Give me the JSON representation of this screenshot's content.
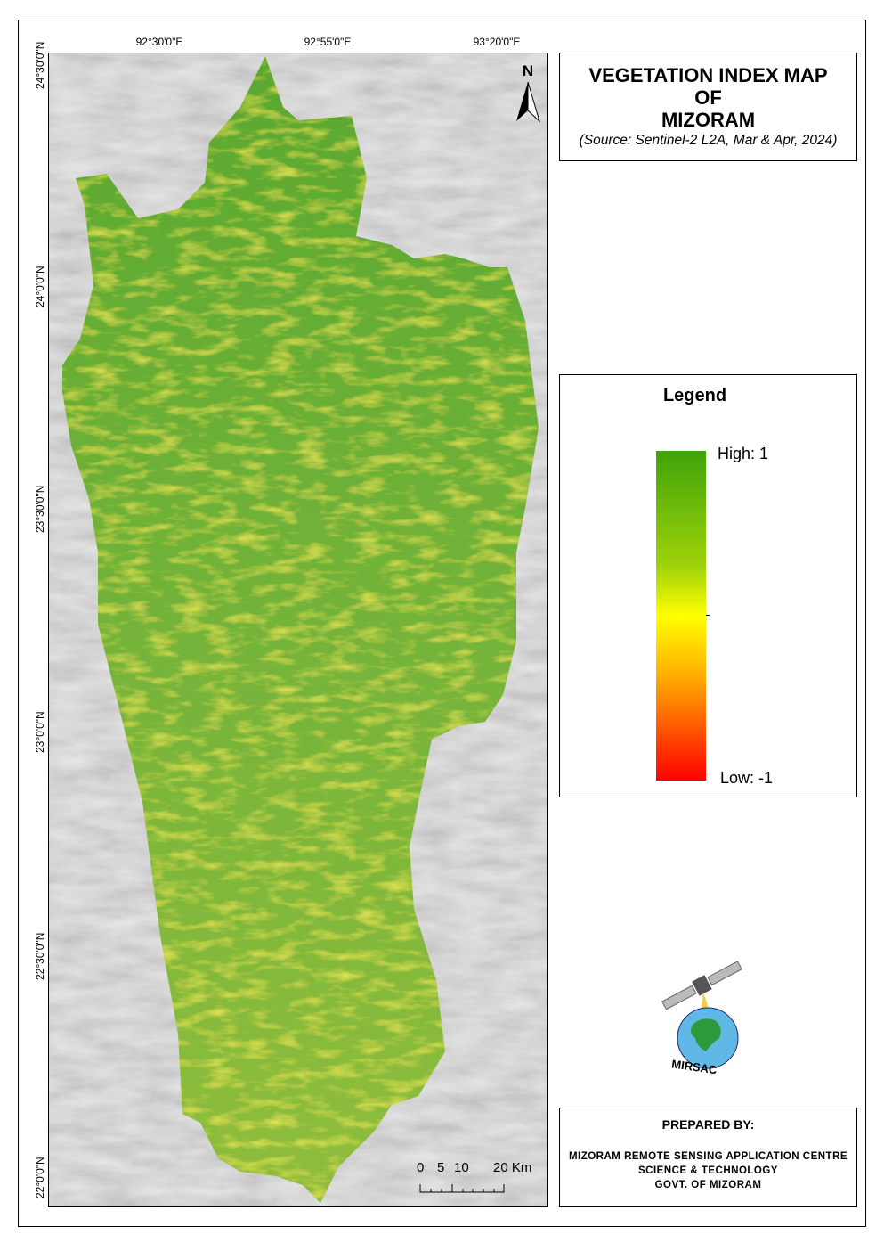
{
  "title": {
    "line1": "VEGETATION INDEX MAP",
    "line2": "OF",
    "line3": "MIZORAM",
    "source": "(Source: Sentinel-2 L2A, Mar & Apr, 2024)"
  },
  "north_arrow": {
    "label": "N",
    "icon": "north-arrow-icon"
  },
  "longitude_labels": [
    "92°30'0\"E",
    "92°55'0\"E",
    "93°20'0\"E"
  ],
  "latitude_labels": [
    "24°30'0\"N",
    "24°0'0\"N",
    "23°30'0\"N",
    "23°0'0\"N",
    "22°30'0\"N",
    "22°0'0\"N"
  ],
  "legend": {
    "heading": "Legend",
    "high": "High: 1",
    "low": "Low: -1",
    "colors": {
      "high": "#3fa30a",
      "mid": "#ffff00",
      "low": "#ff0000"
    }
  },
  "scale_bar": {
    "labels": [
      "0",
      "5",
      "10",
      "20 Km"
    ]
  },
  "logo": {
    "text": "MIRSAC"
  },
  "prepared_by": {
    "heading": "PREPARED BY:",
    "lines": [
      "MIZORAM REMOTE SENSING APPLICATION CENTRE",
      "SCIENCE & TECHNOLOGY",
      "GOVT. OF MIZORAM"
    ]
  }
}
